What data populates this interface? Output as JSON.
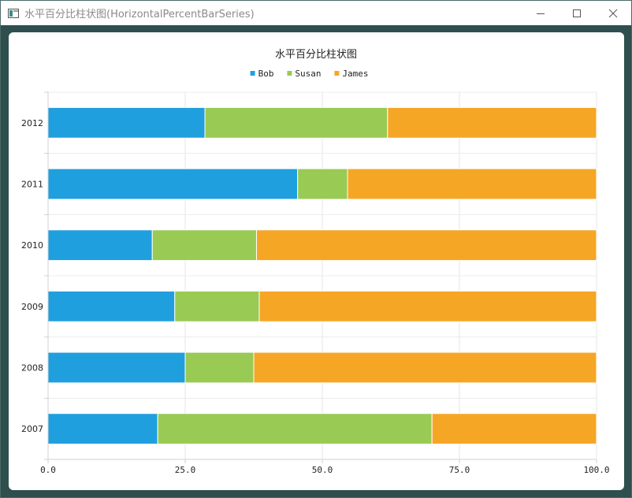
{
  "window": {
    "title": "水平百分比柱状图(HorizontalPercentBarSeries)",
    "controls": [
      "minimize",
      "maximize",
      "close"
    ]
  },
  "chart_data": {
    "type": "bar",
    "orientation": "horizontal",
    "stacked": "percent",
    "title": "水平百分比柱状图",
    "categories": [
      "2007",
      "2008",
      "2009",
      "2010",
      "2011",
      "2012"
    ],
    "series": [
      {
        "name": "Bob",
        "color": "#209fdf",
        "values": [
          20.0,
          25.0,
          23.1,
          19.0,
          45.5,
          28.6
        ]
      },
      {
        "name": "Susan",
        "color": "#99ca53",
        "values": [
          50.0,
          12.5,
          15.4,
          19.0,
          9.1,
          33.3
        ]
      },
      {
        "name": "James",
        "color": "#f6a625",
        "values": [
          30.0,
          62.5,
          61.5,
          62.0,
          45.4,
          38.1
        ]
      }
    ],
    "xlim": [
      0,
      100
    ],
    "xticks": [
      "0.0",
      "25.0",
      "50.0",
      "75.0",
      "100.0"
    ],
    "grid": true,
    "legend": "top-center"
  }
}
